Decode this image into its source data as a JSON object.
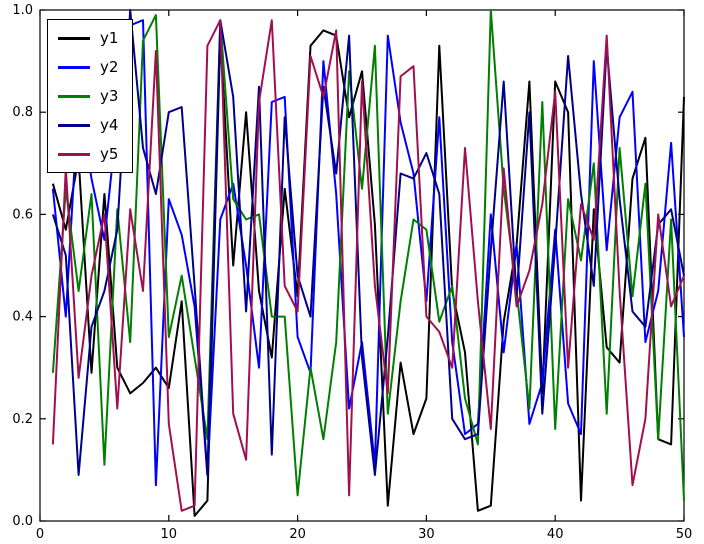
{
  "chart_data": {
    "type": "line",
    "title": "",
    "xlabel": "",
    "ylabel": "",
    "xlim": [
      0,
      50
    ],
    "ylim": [
      0.0,
      1.0
    ],
    "xticks": [
      "0",
      "10",
      "20",
      "30",
      "40",
      "50"
    ],
    "xtick_values": [
      0,
      10,
      20,
      30,
      40,
      50
    ],
    "yticks": [
      "0.0",
      "0.2",
      "0.4",
      "0.6",
      "0.8",
      "1.0"
    ],
    "ytick_values": [
      0.0,
      0.2,
      0.4,
      0.6,
      0.8,
      1.0
    ],
    "grid": false,
    "legend_position": "upper-left",
    "line_width": 2,
    "axis_color": "#000000",
    "background_color": "#ffffff",
    "x": [
      1,
      2,
      3,
      4,
      5,
      6,
      7,
      8,
      9,
      10,
      11,
      12,
      13,
      14,
      15,
      16,
      17,
      18,
      19,
      20,
      21,
      22,
      23,
      24,
      25,
      26,
      27,
      28,
      29,
      30,
      31,
      32,
      33,
      34,
      35,
      36,
      37,
      38,
      39,
      40,
      41,
      42,
      43,
      44,
      45,
      46,
      47,
      48,
      49,
      50
    ],
    "series": [
      {
        "name": "y1",
        "color": "#000000",
        "values": [
          0.66,
          0.57,
          0.71,
          0.29,
          0.64,
          0.3,
          0.25,
          0.27,
          0.3,
          0.26,
          0.43,
          0.01,
          0.04,
          0.95,
          0.5,
          0.8,
          0.45,
          0.32,
          0.65,
          0.44,
          0.93,
          0.96,
          0.95,
          0.79,
          0.88,
          0.58,
          0.03,
          0.31,
          0.17,
          0.24,
          0.93,
          0.45,
          0.33,
          0.02,
          0.03,
          0.39,
          0.54,
          0.86,
          0.25,
          0.86,
          0.8,
          0.04,
          0.61,
          0.34,
          0.31,
          0.67,
          0.75,
          0.16,
          0.15,
          0.83
        ]
      },
      {
        "name": "y2",
        "color": "#0000ff",
        "values": [
          0.65,
          0.4,
          0.83,
          0.67,
          0.55,
          0.79,
          0.97,
          0.98,
          0.07,
          0.63,
          0.56,
          0.42,
          0.09,
          0.59,
          0.66,
          0.5,
          0.3,
          0.82,
          0.83,
          0.36,
          0.29,
          0.9,
          0.64,
          0.22,
          0.35,
          0.11,
          0.95,
          0.78,
          0.68,
          0.43,
          0.79,
          0.35,
          0.17,
          0.19,
          0.6,
          0.33,
          0.54,
          0.19,
          0.27,
          0.57,
          0.23,
          0.17,
          0.9,
          0.53,
          0.79,
          0.84,
          0.35,
          0.45,
          0.74,
          0.36
        ]
      },
      {
        "name": "y3",
        "color": "#007f00",
        "values": [
          0.29,
          0.65,
          0.45,
          0.64,
          0.11,
          0.61,
          0.35,
          0.94,
          0.99,
          0.36,
          0.48,
          0.32,
          0.16,
          0.98,
          0.63,
          0.59,
          0.6,
          0.4,
          0.4,
          0.05,
          0.3,
          0.16,
          0.35,
          0.88,
          0.65,
          0.93,
          0.21,
          0.43,
          0.59,
          0.57,
          0.39,
          0.46,
          0.24,
          0.15,
          1.0,
          0.65,
          0.45,
          0.22,
          0.82,
          0.18,
          0.63,
          0.51,
          0.7,
          0.21,
          0.73,
          0.44,
          0.66,
          0.16,
          0.59,
          0.04
        ]
      },
      {
        "name": "y4",
        "color": "#00008b",
        "values": [
          0.6,
          0.52,
          0.09,
          0.38,
          0.45,
          0.57,
          1.0,
          0.73,
          0.64,
          0.8,
          0.81,
          0.46,
          0.09,
          0.98,
          0.83,
          0.41,
          0.85,
          0.13,
          0.79,
          0.48,
          0.4,
          0.85,
          0.68,
          0.95,
          0.32,
          0.09,
          0.36,
          0.68,
          0.67,
          0.72,
          0.64,
          0.2,
          0.16,
          0.17,
          0.53,
          0.86,
          0.44,
          0.8,
          0.21,
          0.54,
          0.91,
          0.64,
          0.46,
          0.93,
          0.63,
          0.41,
          0.38,
          0.58,
          0.61,
          0.48
        ]
      },
      {
        "name": "y5",
        "color": "#a01050",
        "values": [
          0.15,
          0.69,
          0.28,
          0.48,
          0.6,
          0.22,
          0.61,
          0.45,
          0.92,
          0.19,
          0.02,
          0.03,
          0.93,
          0.98,
          0.21,
          0.12,
          0.82,
          0.98,
          0.46,
          0.41,
          0.91,
          0.83,
          0.96,
          0.05,
          0.86,
          0.46,
          0.25,
          0.87,
          0.89,
          0.4,
          0.37,
          0.3,
          0.73,
          0.43,
          0.18,
          0.69,
          0.42,
          0.49,
          0.62,
          0.84,
          0.3,
          0.62,
          0.55,
          0.95,
          0.45,
          0.07,
          0.2,
          0.6,
          0.42,
          0.48
        ]
      }
    ]
  }
}
